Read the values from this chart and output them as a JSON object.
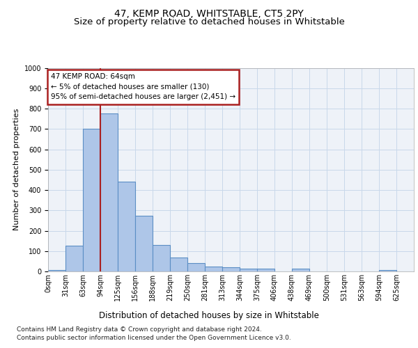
{
  "title": "47, KEMP ROAD, WHITSTABLE, CT5 2PY",
  "subtitle": "Size of property relative to detached houses in Whitstable",
  "xlabel": "Distribution of detached houses by size in Whitstable",
  "ylabel": "Number of detached properties",
  "bar_labels": [
    "0sqm",
    "31sqm",
    "63sqm",
    "94sqm",
    "125sqm",
    "156sqm",
    "188sqm",
    "219sqm",
    "250sqm",
    "281sqm",
    "313sqm",
    "344sqm",
    "375sqm",
    "406sqm",
    "438sqm",
    "469sqm",
    "500sqm",
    "531sqm",
    "563sqm",
    "594sqm",
    "625sqm"
  ],
  "bar_values": [
    7,
    125,
    700,
    775,
    440,
    272,
    130,
    70,
    40,
    24,
    22,
    12,
    12,
    0,
    12,
    0,
    0,
    0,
    0,
    8,
    0
  ],
  "bar_color": "#aec6e8",
  "bar_edge_color": "#5b8ec4",
  "vline_x": 3,
  "vline_color": "#aa2020",
  "annotation_text": "47 KEMP ROAD: 64sqm\n← 5% of detached houses are smaller (130)\n95% of semi-detached houses are larger (2,451) →",
  "annotation_box_color": "#ffffff",
  "annotation_box_edge": "#aa2020",
  "ylim": [
    0,
    1000
  ],
  "yticks": [
    0,
    100,
    200,
    300,
    400,
    500,
    600,
    700,
    800,
    900,
    1000
  ],
  "grid_color": "#c8d8ea",
  "bg_color": "#eef2f8",
  "footer_line1": "Contains HM Land Registry data © Crown copyright and database right 2024.",
  "footer_line2": "Contains public sector information licensed under the Open Government Licence v3.0.",
  "title_fontsize": 10,
  "subtitle_fontsize": 9.5,
  "xlabel_fontsize": 8.5,
  "ylabel_fontsize": 8,
  "tick_fontsize": 7,
  "annotation_fontsize": 7.5,
  "footer_fontsize": 6.5
}
